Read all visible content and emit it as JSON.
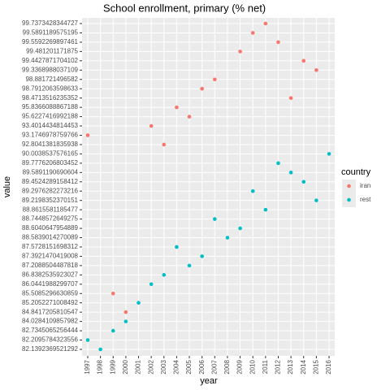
{
  "chart_data": {
    "type": "scatter",
    "title": "School enrollment, primary (% net)",
    "x_label": "year",
    "y_label": "value",
    "legend_title": "country",
    "legend_position": "right",
    "y_scale": "discrete",
    "grid": true,
    "categories": [
      "1997",
      "1998",
      "1999",
      "2000",
      "2001",
      "2002",
      "2003",
      "2004",
      "2005",
      "2006",
      "2007",
      "2008",
      "2009",
      "2010",
      "2011",
      "2012",
      "2013",
      "2014",
      "2015",
      "2016"
    ],
    "yticks": [
      99.7373428344727,
      99.5891189575195,
      99.5592269897461,
      99.481201171875,
      99.4427871704102,
      99.3368988037109,
      98.881721496582,
      98.7912063598633,
      98.4713516235352,
      95.8366088867188,
      95.6227416992188,
      93.4014434814453,
      93.1746978759766,
      92.8041381835938,
      90.0038537576165,
      89.7776206803452,
      89.5891190690604,
      89.4524289158412,
      89.2976282273216,
      89.2198352370151,
      88.8615581185477,
      88.7448572649275,
      88.6040647954889,
      88.5839014270089,
      87.5728151698312,
      87.3921470419008,
      87.2088504487818,
      86.8382535923027,
      86.0441988299707,
      85.5085296630859,
      85.2052271008492,
      84.8417205810547,
      84.0284109857982,
      82.7345065256444,
      82.2095784323556,
      82.1392369521292
    ],
    "series": [
      {
        "name": "iran",
        "color": "#F8766D",
        "values": [
          93.1746978759766,
          null,
          85.5085296630859,
          84.8417205810547,
          null,
          93.4014434814453,
          92.8041381835938,
          95.8366088867188,
          95.6227416992188,
          98.7912063598633,
          98.881721496582,
          null,
          99.481201171875,
          99.5891189575195,
          99.7373428344727,
          99.5592269897461,
          98.4713516235352,
          99.4427871704102,
          99.3368988037109,
          null
        ]
      },
      {
        "name": "rest",
        "color": "#00BFC4",
        "values": [
          82.2095784323556,
          82.1392369521292,
          82.7345065256444,
          84.0284109857982,
          85.2052271008492,
          86.0441988299707,
          86.8382535923027,
          87.5728151698312,
          87.2088504487818,
          87.3921470419008,
          88.7448572649275,
          88.5839014270089,
          88.6040647954889,
          89.2976282273216,
          88.8615581185477,
          89.7776206803452,
          89.5891190690604,
          89.4524289158412,
          89.2198352370151,
          90.0038537576165
        ]
      }
    ]
  }
}
